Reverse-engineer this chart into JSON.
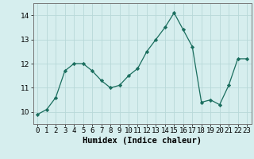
{
  "x": [
    0,
    1,
    2,
    3,
    4,
    5,
    6,
    7,
    8,
    9,
    10,
    11,
    12,
    13,
    14,
    15,
    16,
    17,
    18,
    19,
    20,
    21,
    22,
    23
  ],
  "y": [
    9.9,
    10.1,
    10.6,
    11.7,
    12.0,
    12.0,
    11.7,
    11.3,
    11.0,
    11.1,
    11.5,
    11.8,
    12.5,
    13.0,
    13.5,
    14.1,
    13.4,
    12.7,
    10.4,
    10.5,
    10.3,
    11.1,
    12.2,
    12.2
  ],
  "line_color": "#1a6e5e",
  "marker": "D",
  "marker_size": 2.2,
  "bg_color": "#d6eeee",
  "grid_color": "#b8d8d8",
  "xlabel": "Humidex (Indice chaleur)",
  "ylim": [
    9.5,
    14.5
  ],
  "xlim": [
    -0.5,
    23.5
  ],
  "yticks": [
    10,
    11,
    12,
    13,
    14
  ],
  "xlabel_fontsize": 7.5,
  "tick_fontsize": 6.5
}
